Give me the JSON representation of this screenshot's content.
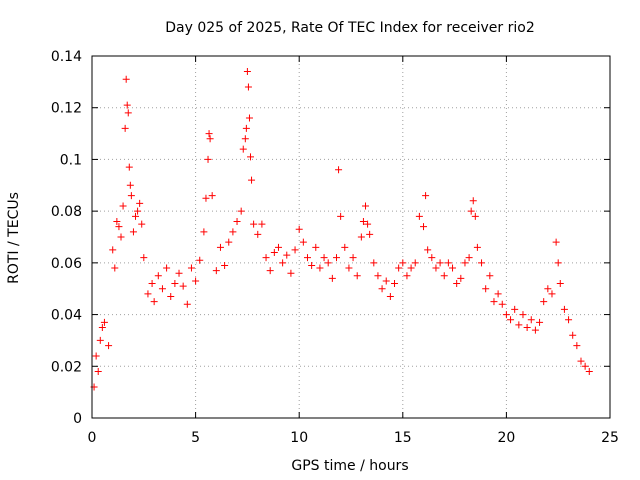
{
  "chart_data": {
    "type": "scatter",
    "title": "Day 025 of 2025, Rate Of TEC Index for receiver rio2",
    "xlabel": "GPS time / hours",
    "ylabel": "ROTI / TECUs",
    "xlim": [
      0,
      25
    ],
    "ylim": [
      0,
      0.14
    ],
    "x_ticks": [
      0,
      5,
      10,
      15,
      20,
      25
    ],
    "y_ticks": [
      0,
      0.02,
      0.04,
      0.06,
      0.08,
      0.1,
      0.12,
      0.14
    ],
    "x_tick_labels": [
      "0",
      "5",
      "10",
      "15",
      "20",
      "25"
    ],
    "y_tick_labels": [
      "0",
      "0.02",
      "0.04",
      "0.06",
      "0.08",
      "0.1",
      "0.12",
      "0.14"
    ],
    "grid": true,
    "marker": "plus",
    "marker_color": "#ff0000",
    "series": [
      {
        "points": [
          [
            0.1,
            0.012
          ],
          [
            0.2,
            0.024
          ],
          [
            0.3,
            0.018
          ],
          [
            0.4,
            0.03
          ],
          [
            0.5,
            0.035
          ],
          [
            0.6,
            0.037
          ],
          [
            0.8,
            0.028
          ],
          [
            1.0,
            0.065
          ],
          [
            1.1,
            0.058
          ],
          [
            1.2,
            0.076
          ],
          [
            1.3,
            0.074
          ],
          [
            1.4,
            0.07
          ],
          [
            1.5,
            0.082
          ],
          [
            1.6,
            0.112
          ],
          [
            1.65,
            0.131
          ],
          [
            1.7,
            0.121
          ],
          [
            1.75,
            0.118
          ],
          [
            1.8,
            0.097
          ],
          [
            1.85,
            0.09
          ],
          [
            1.9,
            0.086
          ],
          [
            2.0,
            0.072
          ],
          [
            2.1,
            0.078
          ],
          [
            2.2,
            0.08
          ],
          [
            2.3,
            0.083
          ],
          [
            2.4,
            0.075
          ],
          [
            2.5,
            0.062
          ],
          [
            2.7,
            0.048
          ],
          [
            2.9,
            0.052
          ],
          [
            3.0,
            0.045
          ],
          [
            3.2,
            0.055
          ],
          [
            3.4,
            0.05
          ],
          [
            3.6,
            0.058
          ],
          [
            3.8,
            0.047
          ],
          [
            4.0,
            0.052
          ],
          [
            4.2,
            0.056
          ],
          [
            4.4,
            0.051
          ],
          [
            4.6,
            0.044
          ],
          [
            4.8,
            0.058
          ],
          [
            5.0,
            0.053
          ],
          [
            5.2,
            0.061
          ],
          [
            5.4,
            0.072
          ],
          [
            5.5,
            0.085
          ],
          [
            5.6,
            0.1
          ],
          [
            5.65,
            0.11
          ],
          [
            5.7,
            0.108
          ],
          [
            5.8,
            0.086
          ],
          [
            6.0,
            0.057
          ],
          [
            6.2,
            0.066
          ],
          [
            6.4,
            0.059
          ],
          [
            6.6,
            0.068
          ],
          [
            6.8,
            0.072
          ],
          [
            7.0,
            0.076
          ],
          [
            7.2,
            0.08
          ],
          [
            7.3,
            0.104
          ],
          [
            7.4,
            0.108
          ],
          [
            7.45,
            0.112
          ],
          [
            7.5,
            0.134
          ],
          [
            7.55,
            0.128
          ],
          [
            7.6,
            0.116
          ],
          [
            7.65,
            0.101
          ],
          [
            7.7,
            0.092
          ],
          [
            7.8,
            0.075
          ],
          [
            8.0,
            0.071
          ],
          [
            8.2,
            0.075
          ],
          [
            8.4,
            0.062
          ],
          [
            8.6,
            0.057
          ],
          [
            8.8,
            0.064
          ],
          [
            9.0,
            0.066
          ],
          [
            9.2,
            0.06
          ],
          [
            9.4,
            0.063
          ],
          [
            9.6,
            0.056
          ],
          [
            9.8,
            0.065
          ],
          [
            10.0,
            0.073
          ],
          [
            10.2,
            0.068
          ],
          [
            10.4,
            0.062
          ],
          [
            10.6,
            0.059
          ],
          [
            10.8,
            0.066
          ],
          [
            11.0,
            0.058
          ],
          [
            11.2,
            0.062
          ],
          [
            11.4,
            0.06
          ],
          [
            11.6,
            0.054
          ],
          [
            11.8,
            0.062
          ],
          [
            11.9,
            0.096
          ],
          [
            12.0,
            0.078
          ],
          [
            12.2,
            0.066
          ],
          [
            12.4,
            0.058
          ],
          [
            12.6,
            0.062
          ],
          [
            12.8,
            0.055
          ],
          [
            13.0,
            0.07
          ],
          [
            13.1,
            0.076
          ],
          [
            13.2,
            0.082
          ],
          [
            13.3,
            0.075
          ],
          [
            13.4,
            0.071
          ],
          [
            13.6,
            0.06
          ],
          [
            13.8,
            0.055
          ],
          [
            14.0,
            0.05
          ],
          [
            14.2,
            0.053
          ],
          [
            14.4,
            0.047
          ],
          [
            14.6,
            0.052
          ],
          [
            14.8,
            0.058
          ],
          [
            15.0,
            0.06
          ],
          [
            15.2,
            0.055
          ],
          [
            15.4,
            0.058
          ],
          [
            15.6,
            0.06
          ],
          [
            15.8,
            0.078
          ],
          [
            16.0,
            0.074
          ],
          [
            16.1,
            0.086
          ],
          [
            16.2,
            0.065
          ],
          [
            16.4,
            0.062
          ],
          [
            16.6,
            0.058
          ],
          [
            16.8,
            0.06
          ],
          [
            17.0,
            0.055
          ],
          [
            17.2,
            0.06
          ],
          [
            17.4,
            0.058
          ],
          [
            17.6,
            0.052
          ],
          [
            17.8,
            0.054
          ],
          [
            18.0,
            0.06
          ],
          [
            18.2,
            0.062
          ],
          [
            18.3,
            0.08
          ],
          [
            18.4,
            0.084
          ],
          [
            18.5,
            0.078
          ],
          [
            18.6,
            0.066
          ],
          [
            18.8,
            0.06
          ],
          [
            19.0,
            0.05
          ],
          [
            19.2,
            0.055
          ],
          [
            19.4,
            0.045
          ],
          [
            19.6,
            0.048
          ],
          [
            19.8,
            0.044
          ],
          [
            20.0,
            0.04
          ],
          [
            20.2,
            0.038
          ],
          [
            20.4,
            0.042
          ],
          [
            20.6,
            0.036
          ],
          [
            20.8,
            0.04
          ],
          [
            21.0,
            0.035
          ],
          [
            21.2,
            0.038
          ],
          [
            21.4,
            0.034
          ],
          [
            21.6,
            0.037
          ],
          [
            21.8,
            0.045
          ],
          [
            22.0,
            0.05
          ],
          [
            22.2,
            0.048
          ],
          [
            22.4,
            0.068
          ],
          [
            22.5,
            0.06
          ],
          [
            22.6,
            0.052
          ],
          [
            22.8,
            0.042
          ],
          [
            23.0,
            0.038
          ],
          [
            23.2,
            0.032
          ],
          [
            23.4,
            0.028
          ],
          [
            23.6,
            0.022
          ],
          [
            23.8,
            0.02
          ],
          [
            24.0,
            0.018
          ]
        ]
      }
    ]
  }
}
